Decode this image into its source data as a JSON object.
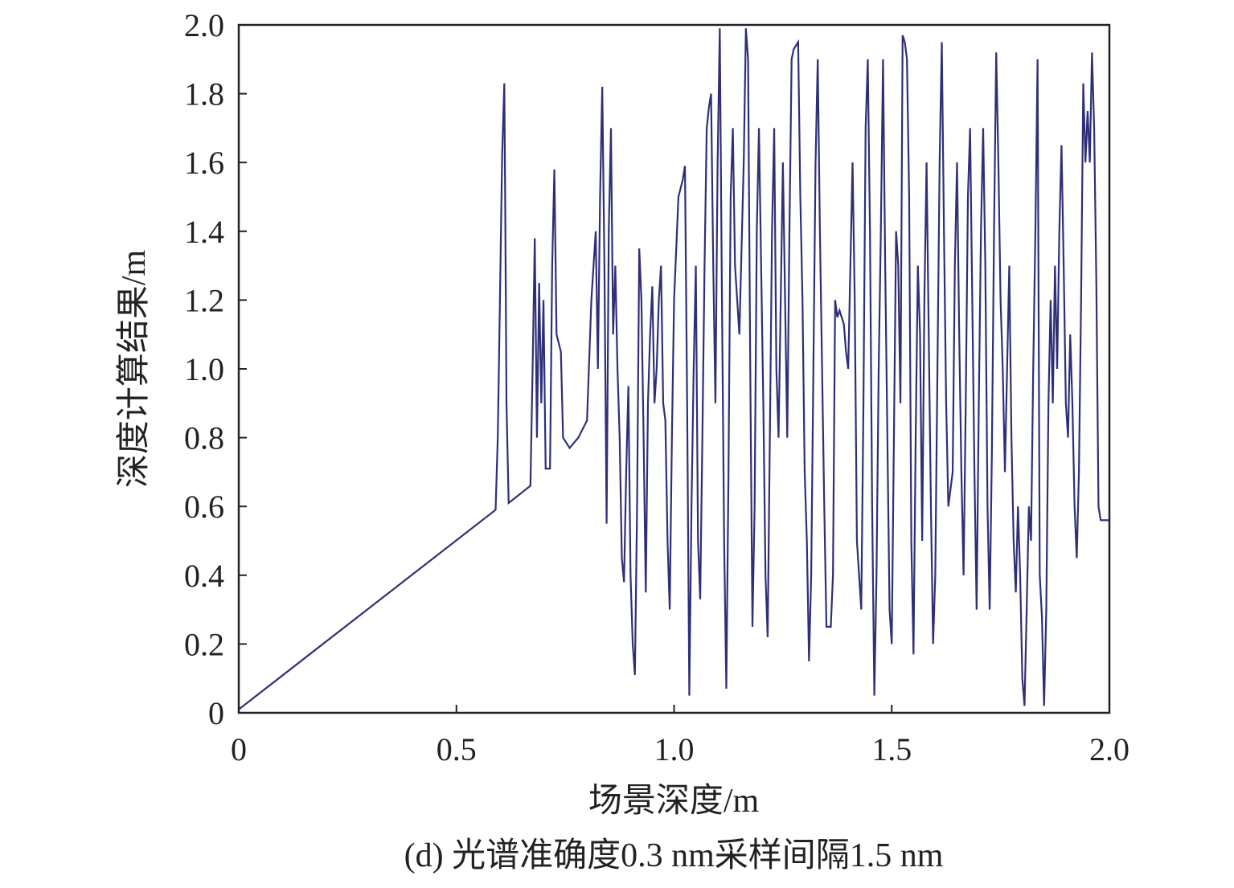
{
  "chart_data": {
    "type": "line",
    "title": "(d) 光谱准确度0.3 nm采样间隔1.5 nm",
    "xlabel": "场景深度/m",
    "ylabel": "深度计算结果/m",
    "color": "#2f2f78",
    "xlim": [
      0,
      2
    ],
    "ylim": [
      0,
      2
    ],
    "xticks": [
      0,
      0.5,
      {
        "value": 1,
        "label": "1.0"
      },
      1.5,
      {
        "value": 2,
        "label": "2.0"
      }
    ],
    "yticks": [
      0,
      0.2,
      0.4,
      0.6,
      0.8,
      {
        "value": 1,
        "label": "1.0"
      },
      1.2,
      1.4,
      1.6,
      1.8,
      {
        "value": 2,
        "label": "2.0"
      }
    ],
    "x": [
      0,
      0.59,
      0.595,
      0.6,
      0.605,
      0.61,
      0.612,
      0.615,
      0.62,
      0.67,
      0.675,
      0.68,
      0.685,
      0.69,
      0.695,
      0.7,
      0.705,
      0.715,
      0.72,
      0.725,
      0.73,
      0.74,
      0.745,
      0.76,
      0.78,
      0.8,
      0.81,
      0.82,
      0.825,
      0.83,
      0.835,
      0.84,
      0.845,
      0.85,
      0.855,
      0.86,
      0.865,
      0.87,
      0.875,
      0.88,
      0.885,
      0.89,
      0.895,
      0.9,
      0.905,
      0.91,
      0.915,
      0.92,
      0.925,
      0.93,
      0.935,
      0.94,
      0.945,
      0.95,
      0.955,
      0.96,
      0.965,
      0.97,
      0.975,
      0.98,
      0.985,
      0.99,
      0.995,
      1.0,
      1.01,
      1.02,
      1.025,
      1.03,
      1.035,
      1.04,
      1.045,
      1.05,
      1.055,
      1.06,
      1.065,
      1.07,
      1.075,
      1.08,
      1.085,
      1.09,
      1.095,
      1.1,
      1.105,
      1.11,
      1.115,
      1.12,
      1.125,
      1.13,
      1.135,
      1.14,
      1.15,
      1.16,
      1.165,
      1.17,
      1.175,
      1.18,
      1.185,
      1.19,
      1.195,
      1.2,
      1.205,
      1.21,
      1.215,
      1.22,
      1.225,
      1.23,
      1.235,
      1.24,
      1.245,
      1.25,
      1.255,
      1.26,
      1.265,
      1.27,
      1.275,
      1.28,
      1.285,
      1.29,
      1.295,
      1.3,
      1.305,
      1.31,
      1.315,
      1.32,
      1.325,
      1.33,
      1.335,
      1.34,
      1.345,
      1.35,
      1.36,
      1.365,
      1.37,
      1.375,
      1.38,
      1.39,
      1.395,
      1.4,
      1.405,
      1.41,
      1.415,
      1.42,
      1.43,
      1.435,
      1.44,
      1.445,
      1.45,
      1.455,
      1.46,
      1.465,
      1.47,
      1.475,
      1.48,
      1.485,
      1.49,
      1.495,
      1.5,
      1.505,
      1.51,
      1.515,
      1.52,
      1.525,
      1.53,
      1.535,
      1.54,
      1.545,
      1.55,
      1.555,
      1.56,
      1.565,
      1.57,
      1.575,
      1.58,
      1.585,
      1.59,
      1.595,
      1.6,
      1.605,
      1.61,
      1.615,
      1.62,
      1.625,
      1.63,
      1.64,
      1.645,
      1.65,
      1.655,
      1.66,
      1.665,
      1.67,
      1.675,
      1.68,
      1.685,
      1.69,
      1.695,
      1.7,
      1.705,
      1.71,
      1.715,
      1.72,
      1.725,
      1.73,
      1.735,
      1.74,
      1.745,
      1.75,
      1.755,
      1.76,
      1.765,
      1.77,
      1.775,
      1.78,
      1.785,
      1.79,
      1.795,
      1.8,
      1.805,
      1.81,
      1.815,
      1.82,
      1.825,
      1.83,
      1.835,
      1.84,
      1.845,
      1.85,
      1.855,
      1.86,
      1.865,
      1.87,
      1.875,
      1.88,
      1.885,
      1.89,
      1.895,
      1.9,
      1.905,
      1.91,
      1.915,
      1.92,
      1.925,
      1.93,
      1.935,
      1.94,
      1.945,
      1.95,
      1.955,
      1.96,
      1.965,
      1.97,
      1.975,
      1.98,
      2.0
    ],
    "values": [
      0.01,
      0.59,
      0.8,
      1.2,
      1.62,
      1.83,
      1.5,
      0.9,
      0.61,
      0.66,
      1.0,
      1.38,
      0.8,
      1.25,
      0.9,
      1.2,
      0.71,
      0.71,
      1.3,
      1.58,
      1.1,
      1.05,
      0.8,
      0.77,
      0.8,
      0.85,
      1.2,
      1.4,
      1.0,
      1.5,
      1.82,
      1.3,
      0.55,
      1.4,
      1.7,
      1.1,
      1.3,
      1.0,
      0.8,
      0.45,
      0.38,
      0.7,
      0.95,
      0.4,
      0.2,
      0.11,
      0.6,
      1.35,
      1.2,
      0.8,
      0.35,
      0.9,
      1.1,
      1.24,
      0.9,
      1.0,
      1.2,
      1.3,
      0.9,
      0.85,
      0.5,
      0.3,
      0.8,
      1.2,
      1.5,
      1.55,
      1.59,
      0.9,
      0.05,
      0.6,
      1.0,
      1.3,
      0.5,
      0.33,
      0.8,
      1.3,
      1.7,
      1.76,
      1.8,
      1.3,
      0.9,
      1.6,
      1.99,
      1.2,
      0.5,
      0.07,
      0.7,
      1.5,
      1.7,
      1.3,
      1.1,
      1.6,
      1.99,
      1.9,
      1.0,
      0.25,
      0.6,
      1.4,
      1.7,
      1.3,
      0.9,
      0.4,
      0.22,
      0.8,
      1.4,
      1.7,
      1.0,
      0.8,
      1.2,
      1.6,
      1.2,
      0.8,
      1.4,
      1.9,
      1.93,
      1.94,
      1.95,
      1.5,
      1.2,
      0.7,
      0.5,
      0.15,
      0.4,
      1.0,
      1.6,
      1.9,
      1.4,
      1.0,
      0.6,
      0.25,
      0.25,
      0.4,
      1.2,
      1.15,
      1.17,
      1.13,
      1.05,
      1.0,
      1.3,
      1.6,
      1.2,
      0.5,
      0.3,
      0.9,
      1.7,
      1.9,
      1.4,
      0.6,
      0.05,
      0.4,
      1.0,
      1.4,
      1.9,
      1.3,
      0.8,
      0.3,
      0.2,
      0.8,
      1.4,
      1.3,
      0.9,
      1.97,
      1.95,
      1.9,
      1.5,
      0.5,
      0.17,
      0.8,
      1.3,
      1.1,
      0.5,
      1.2,
      1.6,
      1.1,
      0.6,
      0.2,
      0.4,
      1.0,
      1.6,
      1.95,
      1.4,
      0.9,
      0.6,
      0.7,
      1.3,
      1.6,
      1.1,
      0.7,
      0.4,
      0.9,
      1.5,
      1.7,
      1.2,
      0.7,
      0.3,
      0.9,
      1.4,
      1.7,
      1.3,
      0.6,
      0.3,
      0.75,
      1.4,
      1.92,
      1.6,
      1.2,
      1.0,
      0.7,
      1.0,
      1.3,
      0.8,
      0.5,
      0.35,
      0.6,
      0.4,
      0.1,
      0.02,
      0.3,
      0.6,
      0.5,
      1.0,
      1.4,
      1.9,
      0.4,
      0.28,
      0.02,
      0.3,
      0.9,
      1.2,
      0.9,
      1.3,
      1.0,
      1.4,
      1.65,
      1.3,
      0.9,
      0.8,
      1.1,
      0.9,
      0.6,
      0.45,
      0.7,
      1.2,
      1.83,
      1.6,
      1.75,
      1.6,
      1.92,
      1.7,
      1.25,
      0.6,
      0.56,
      0.56
    ]
  }
}
